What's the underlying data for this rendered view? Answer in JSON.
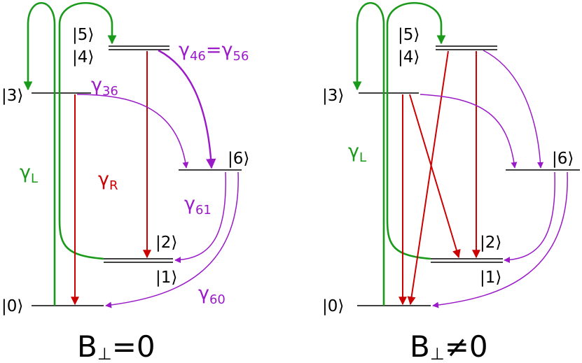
{
  "panels": [
    {
      "levels": [
        "|0⟩",
        "|1⟩",
        "|2⟩",
        "|3⟩",
        "|4⟩",
        "|5⟩",
        "|6⟩"
      ],
      "rates": [
        {
          "symbol": "γ",
          "sub": "36"
        },
        {
          "symbol": "γ",
          "sub": "46",
          "equals": "=",
          "symbol_2": "γ",
          "sub_2": "56"
        },
        {
          "symbol": "γ",
          "sub": "L"
        },
        {
          "symbol": "γ",
          "sub": "R"
        },
        {
          "symbol": "γ",
          "sub": "61"
        },
        {
          "symbol": "γ",
          "sub": "60"
        }
      ],
      "caption": {
        "main": "B",
        "sub": "⊥",
        "relation": "=0"
      }
    },
    {
      "levels": [
        "|0⟩",
        "|1⟩",
        "|2⟩",
        "|3⟩",
        "|4⟩",
        "|5⟩",
        "|6⟩"
      ],
      "rates": [
        {
          "symbol": "γ",
          "sub": "L"
        }
      ],
      "caption": {
        "main": "B",
        "sub": "⊥",
        "relation": "≠0"
      }
    }
  ]
}
